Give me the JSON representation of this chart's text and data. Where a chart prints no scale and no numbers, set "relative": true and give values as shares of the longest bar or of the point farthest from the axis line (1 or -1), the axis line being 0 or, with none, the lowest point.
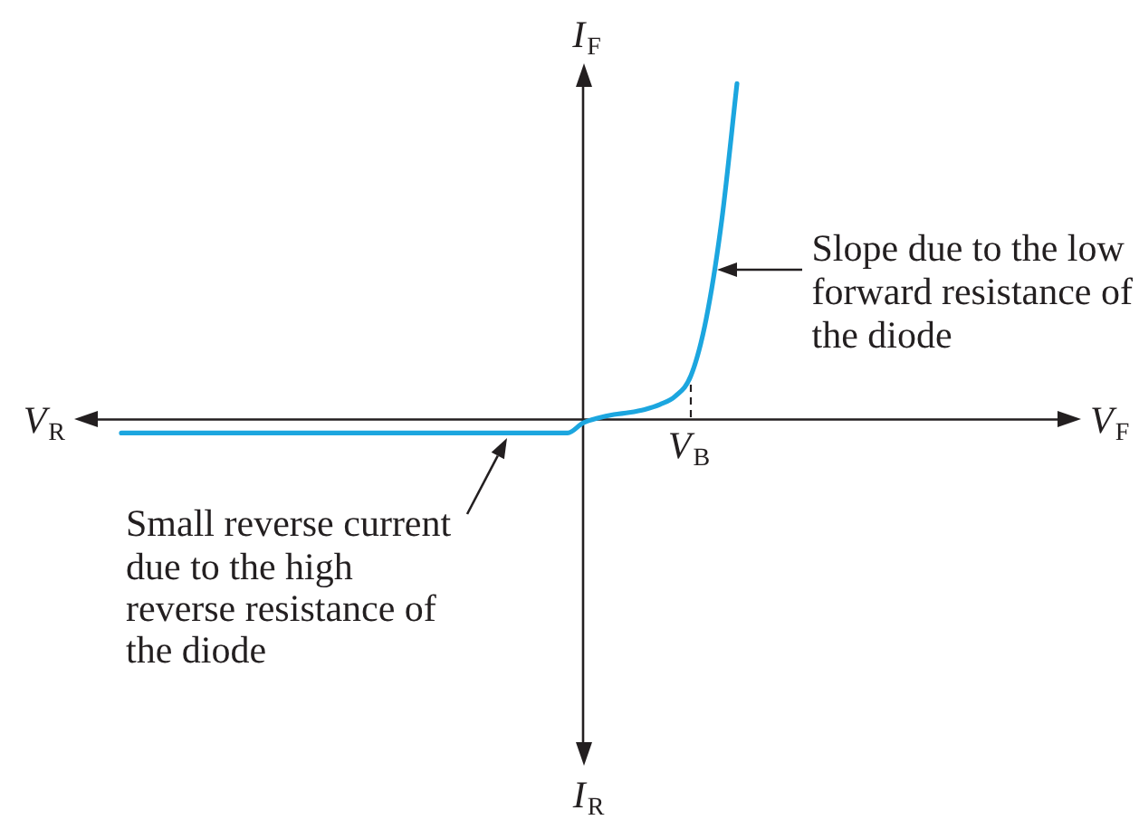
{
  "chart_data": {
    "type": "line",
    "relative": true,
    "marker": "none",
    "xlabel": "V$_{F}$",
    "ylabel": "I$_{F}$",
    "categories": [
      null,
      null,
      null,
      null,
      null,
      null,
      null,
      null,
      null,
      null,
      null,
      null,
      null,
      null,
      null,
      null,
      null,
      null,
      null,
      null,
      null,
      null,
      null,
      null,
      null,
      null,
      null,
      null,
      null,
      null,
      null,
      null,
      null,
      null,
      null,
      null,
      null,
      null,
      null,
      null,
      null,
      null,
      null,
      null,
      null,
      null,
      null,
      null,
      null,
      null,
      null,
      null,
      null,
      null,
      null,
      null,
      null,
      null,
      null,
      null,
      null,
      null,
      null,
      null,
      null
    ],
    "series": [
      {
        "color": "#1ca6df",
        "values": [
          null,
          null,
          -0.04,
          -0.04,
          -0.04,
          -0.04,
          -0.04,
          -0.04,
          -0.04,
          -0.04,
          -0.04,
          -0.04,
          -0.04,
          -0.04,
          -0.04,
          -0.04,
          -0.04,
          -0.04,
          -0.04,
          -0.04,
          -0.04,
          -0.04,
          -0.04,
          -0.04,
          -0.04,
          -0.04,
          -0.04,
          -0.04,
          -0.04,
          -0.04,
          -0.04,
          -0.04,
          -0.01,
          0.005,
          0.015,
          0.021,
          0.03,
          0.045,
          0.07,
          0.13,
          0.3,
          0.59,
          1,
          null,
          null,
          null,
          null,
          null,
          null,
          null,
          null,
          null,
          null,
          null,
          null,
          null,
          null,
          null,
          null,
          null,
          null,
          null,
          null,
          null,
          null
        ]
      }
    ],
    "annotations": [
      "V$_{R}$",
      "I$_{R}$",
      {
        "text": "V$_{B}$",
        "y": 0.12
      },
      "Slope due to the low\nforward resistance of\nthe diode",
      "Small reverse current\ndue to the high\nreverse resistance of\nthe diode"
    ]
  }
}
